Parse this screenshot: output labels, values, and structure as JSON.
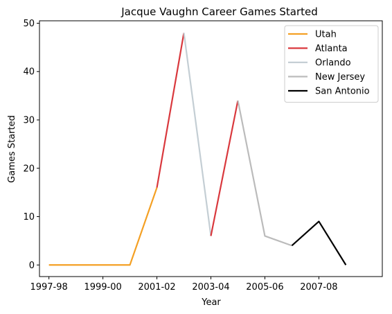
{
  "chart_data": {
    "type": "line",
    "title": "Jacque Vaughn Career Games Started",
    "xlabel": "Year",
    "ylabel": "Games Started",
    "x_tick_labels": [
      "1997-98",
      "1999-00",
      "2001-02",
      "2003-04",
      "2005-06",
      "2007-08"
    ],
    "x_tick_positions": [
      1997,
      1999,
      2001,
      2003,
      2005,
      2007
    ],
    "xlim": [
      1996.65,
      2009.35
    ],
    "ylim": [
      -2.4,
      50.5
    ],
    "y_ticks": [
      0,
      10,
      20,
      30,
      40,
      50
    ],
    "grid": false,
    "legend_position": "top-right",
    "series": [
      {
        "name": "Utah",
        "color": "#f4a024",
        "points": [
          [
            1997,
            0
          ],
          [
            1998,
            0
          ],
          [
            1999,
            0
          ],
          [
            2000,
            0
          ],
          [
            2001,
            16
          ]
        ]
      },
      {
        "name": "Atlanta",
        "color": "#d9383d",
        "points": [
          [
            2001,
            16
          ],
          [
            2002,
            48
          ]
        ]
      },
      {
        "name": "Orlando",
        "color": "#c4ced4",
        "points": [
          [
            2002,
            48
          ],
          [
            2003,
            6
          ]
        ]
      },
      {
        "name": "Atlanta",
        "color": "#d9383d",
        "legend": false,
        "points": [
          [
            2003,
            6
          ],
          [
            2004,
            34
          ]
        ]
      },
      {
        "name": "New Jersey",
        "color": "#bbbbbb",
        "points": [
          [
            2004,
            34
          ],
          [
            2005,
            6
          ],
          [
            2006,
            4
          ]
        ]
      },
      {
        "name": "San Antonio",
        "color": "#000000",
        "points": [
          [
            2006,
            4
          ],
          [
            2007,
            9
          ],
          [
            2008,
            0
          ]
        ]
      }
    ]
  }
}
